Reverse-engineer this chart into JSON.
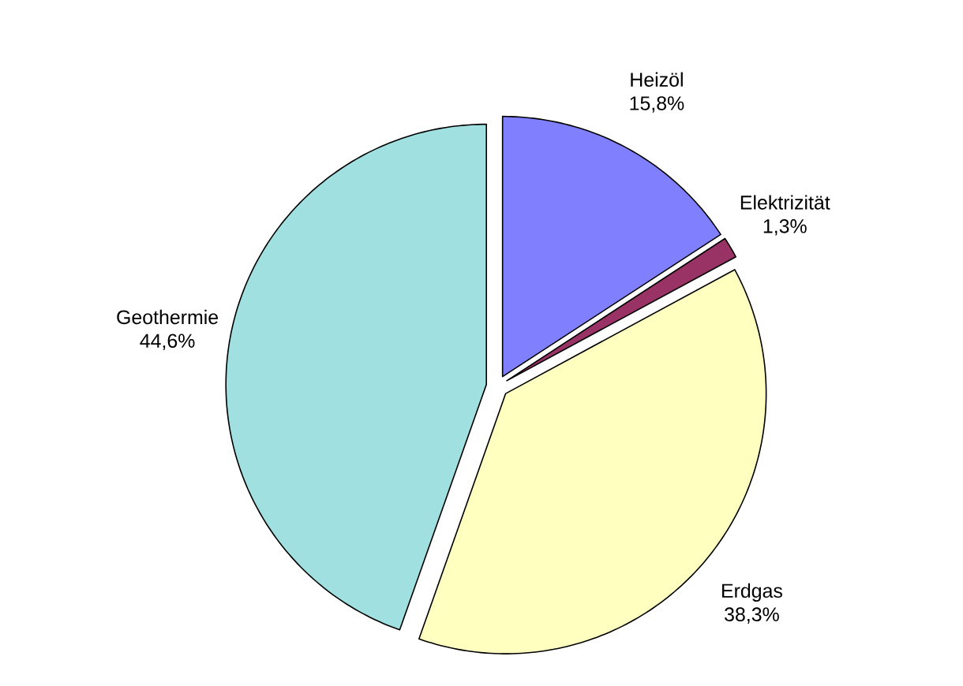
{
  "chart_data": {
    "type": "pie",
    "categories": [
      "Heizöl",
      "Elektrizität",
      "Erdgas",
      "Geothermie"
    ],
    "values": [
      15.8,
      1.3,
      38.3,
      44.6
    ],
    "value_labels": [
      "15,8%",
      "1,3%",
      "38,3%",
      "44,6%"
    ],
    "colors": [
      "#8080ff",
      "#993366",
      "#ffffc0",
      "#a0e0e0"
    ]
  }
}
